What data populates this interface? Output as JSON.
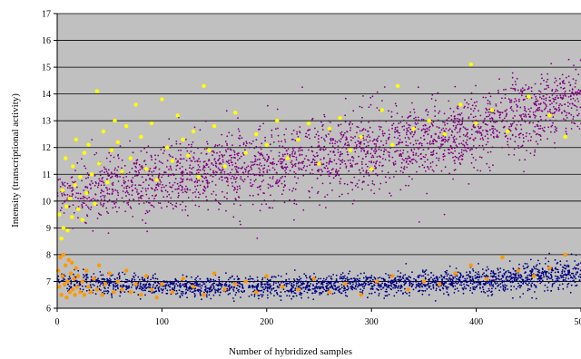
{
  "chart_data": {
    "type": "scatter",
    "xlabel": "Number of hybridized samples",
    "ylabel": "Intensity (transcriptional activity)",
    "xlim": [
      0,
      500
    ],
    "ylim": [
      6,
      17
    ],
    "x_ticks": [
      "0",
      "100",
      "200",
      "300",
      "400",
      "500"
    ],
    "y_ticks": [
      "6",
      "7",
      "8",
      "9",
      "10",
      "11",
      "12",
      "13",
      "14",
      "15",
      "16",
      "17"
    ],
    "grid": "horizontal",
    "plot_background": "#c0c0c0",
    "colors": {
      "upper_dense": "#800080",
      "lower_dense": "#000080",
      "upper_highlight": "#ffff00",
      "lower_highlight": "#ff9900"
    },
    "series": [
      {
        "role": "upper_dense",
        "color": "#800080",
        "trend": {
          "x": [
            0,
            25,
            100,
            200,
            300,
            400,
            500
          ],
          "y": [
            10.2,
            10.3,
            10.9,
            11.4,
            11.9,
            12.6,
            14.0
          ]
        },
        "spread": [
          0.6,
          1.0,
          1.2,
          1.3,
          1.3,
          1.3,
          1.1
        ]
      },
      {
        "role": "lower_dense",
        "color": "#000080",
        "trend": {
          "x": [
            0,
            100,
            200,
            300,
            400,
            500
          ],
          "y": [
            7.0,
            6.8,
            6.8,
            6.9,
            7.0,
            7.3
          ]
        },
        "spread": [
          0.4,
          0.35,
          0.35,
          0.35,
          0.4,
          0.5
        ]
      },
      {
        "role": "upper_highlight",
        "color": "#ffff00",
        "points": [
          [
            2,
            9.5
          ],
          [
            4,
            8.6
          ],
          [
            5,
            10.4
          ],
          [
            6,
            9.0
          ],
          [
            8,
            11.6
          ],
          [
            9,
            9.8
          ],
          [
            10,
            8.9
          ],
          [
            12,
            10.1
          ],
          [
            14,
            9.4
          ],
          [
            15,
            11.3
          ],
          [
            17,
            10.6
          ],
          [
            18,
            12.3
          ],
          [
            20,
            9.7
          ],
          [
            22,
            10.9
          ],
          [
            24,
            9.3
          ],
          [
            26,
            11.8
          ],
          [
            28,
            10.3
          ],
          [
            30,
            12.1
          ],
          [
            33,
            11.0
          ],
          [
            36,
            9.9
          ],
          [
            38,
            14.1
          ],
          [
            40,
            11.4
          ],
          [
            44,
            12.6
          ],
          [
            48,
            10.7
          ],
          [
            52,
            11.9
          ],
          [
            55,
            13.0
          ],
          [
            58,
            12.2
          ],
          [
            62,
            11.1
          ],
          [
            66,
            12.8
          ],
          [
            70,
            11.6
          ],
          [
            75,
            13.6
          ],
          [
            80,
            12.4
          ],
          [
            85,
            11.2
          ],
          [
            90,
            12.9
          ],
          [
            95,
            10.8
          ],
          [
            100,
            13.8
          ],
          [
            105,
            12.0
          ],
          [
            110,
            11.5
          ],
          [
            115,
            13.2
          ],
          [
            120,
            12.3
          ],
          [
            125,
            11.7
          ],
          [
            130,
            12.6
          ],
          [
            135,
            10.9
          ],
          [
            140,
            14.3
          ],
          [
            145,
            11.9
          ],
          [
            150,
            12.8
          ],
          [
            160,
            11.3
          ],
          [
            170,
            13.3
          ],
          [
            180,
            11.8
          ],
          [
            190,
            12.5
          ],
          [
            200,
            12.1
          ],
          [
            210,
            13.0
          ],
          [
            220,
            11.6
          ],
          [
            230,
            12.3
          ],
          [
            240,
            12.9
          ],
          [
            250,
            11.4
          ],
          [
            260,
            12.7
          ],
          [
            270,
            13.1
          ],
          [
            280,
            11.9
          ],
          [
            290,
            12.4
          ],
          [
            300,
            11.2
          ],
          [
            310,
            13.4
          ],
          [
            320,
            12.1
          ],
          [
            325,
            14.3
          ],
          [
            340,
            12.7
          ],
          [
            355,
            13.0
          ],
          [
            370,
            12.5
          ],
          [
            385,
            13.6
          ],
          [
            395,
            15.1
          ],
          [
            400,
            12.9
          ],
          [
            415,
            13.4
          ],
          [
            430,
            12.6
          ],
          [
            450,
            13.9
          ],
          [
            470,
            13.2
          ],
          [
            485,
            12.4
          ]
        ]
      },
      {
        "role": "lower_highlight",
        "color": "#ff9900",
        "points": [
          [
            1,
            7.4
          ],
          [
            2,
            6.8
          ],
          [
            3,
            7.9
          ],
          [
            4,
            6.5
          ],
          [
            5,
            7.2
          ],
          [
            6,
            8.0
          ],
          [
            7,
            6.9
          ],
          [
            8,
            7.6
          ],
          [
            9,
            6.4
          ],
          [
            10,
            7.0
          ],
          [
            11,
            7.8
          ],
          [
            12,
            6.6
          ],
          [
            13,
            7.3
          ],
          [
            14,
            7.7
          ],
          [
            15,
            6.7
          ],
          [
            16,
            7.1
          ],
          [
            17,
            6.5
          ],
          [
            18,
            7.5
          ],
          [
            19,
            6.8
          ],
          [
            20,
            7.2
          ],
          [
            22,
            6.6
          ],
          [
            24,
            7.0
          ],
          [
            26,
            6.5
          ],
          [
            28,
            7.4
          ],
          [
            30,
            6.8
          ],
          [
            32,
            6.6
          ],
          [
            35,
            7.1
          ],
          [
            38,
            6.7
          ],
          [
            40,
            7.6
          ],
          [
            43,
            6.5
          ],
          [
            46,
            6.9
          ],
          [
            50,
            7.3
          ],
          [
            54,
            6.6
          ],
          [
            58,
            7.0
          ],
          [
            62,
            6.7
          ],
          [
            66,
            7.4
          ],
          [
            70,
            6.6
          ],
          [
            75,
            6.9
          ],
          [
            80,
            6.5
          ],
          [
            85,
            7.2
          ],
          [
            90,
            6.7
          ],
          [
            95,
            6.4
          ],
          [
            100,
            6.9
          ],
          [
            110,
            6.6
          ],
          [
            120,
            7.1
          ],
          [
            130,
            6.8
          ],
          [
            140,
            6.5
          ],
          [
            150,
            7.3
          ],
          [
            160,
            6.7
          ],
          [
            170,
            6.9
          ],
          [
            180,
            7.0
          ],
          [
            190,
            6.6
          ],
          [
            200,
            7.2
          ],
          [
            215,
            6.8
          ],
          [
            230,
            6.7
          ],
          [
            245,
            7.1
          ],
          [
            260,
            6.6
          ],
          [
            275,
            6.9
          ],
          [
            290,
            6.5
          ],
          [
            305,
            7.0
          ],
          [
            320,
            7.2
          ],
          [
            335,
            6.7
          ],
          [
            350,
            7.0
          ],
          [
            365,
            6.9
          ],
          [
            380,
            7.3
          ],
          [
            395,
            7.6
          ],
          [
            410,
            7.1
          ],
          [
            425,
            7.9
          ],
          [
            440,
            7.4
          ],
          [
            455,
            7.2
          ],
          [
            470,
            7.5
          ],
          [
            485,
            8.0
          ]
        ]
      }
    ]
  }
}
